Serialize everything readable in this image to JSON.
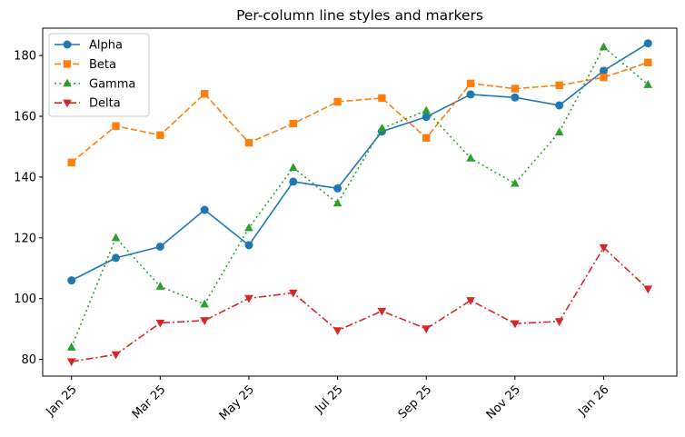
{
  "chart_data": {
    "type": "line",
    "title": "Per-column line styles and markers",
    "xlabel": "",
    "ylabel": "",
    "x": [
      "2025-01",
      "2025-02",
      "2025-03",
      "2025-04",
      "2025-05",
      "2025-06",
      "2025-07",
      "2025-08",
      "2025-09",
      "2025-10",
      "2025-11",
      "2025-12",
      "2026-01",
      "2026-02"
    ],
    "x_tick_labels": [
      {
        "x": "2025-01",
        "label": "Jan 25"
      },
      {
        "x": "2025-03",
        "label": "Mar 25"
      },
      {
        "x": "2025-05",
        "label": "May 25"
      },
      {
        "x": "2025-07",
        "label": "Jul 25"
      },
      {
        "x": "2025-09",
        "label": "Sep 25"
      },
      {
        "x": "2025-11",
        "label": "Nov 25"
      },
      {
        "x": "2026-01",
        "label": "Jan 26"
      }
    ],
    "ylim": [
      74.5,
      189
    ],
    "y_ticks": [
      80,
      100,
      120,
      140,
      160,
      180
    ],
    "grid": false,
    "legend_position": "upper-left",
    "series": [
      {
        "name": "Alpha",
        "color": "#1f77b4",
        "line_style": "solid",
        "marker": "circle",
        "values": [
          106.0,
          113.4,
          117.1,
          129.2,
          117.6,
          138.5,
          136.3,
          155.0,
          159.8,
          167.2,
          166.2,
          163.6,
          175.0,
          184.0
        ]
      },
      {
        "name": "Beta",
        "color": "#ff7f0e",
        "line_style": "dashed",
        "marker": "square",
        "values": [
          144.8,
          156.8,
          153.8,
          167.4,
          151.3,
          157.6,
          164.8,
          166.0,
          152.9,
          170.8,
          169.1,
          170.2,
          172.8,
          177.7
        ]
      },
      {
        "name": "Gamma",
        "color": "#2ca02c",
        "line_style": "dotted",
        "marker": "triangle-up",
        "values": [
          84.0,
          120.0,
          104.0,
          98.2,
          123.3,
          143.1,
          131.4,
          156.0,
          161.9,
          146.2,
          137.9,
          154.8,
          182.8,
          170.4
        ]
      },
      {
        "name": "Delta",
        "color": "#d62728",
        "line_style": "dashdot",
        "marker": "triangle-down",
        "values": [
          79.3,
          81.6,
          92.0,
          92.8,
          100.1,
          101.9,
          89.5,
          95.9,
          90.1,
          99.4,
          91.8,
          92.5,
          116.8,
          103.2
        ]
      }
    ]
  }
}
